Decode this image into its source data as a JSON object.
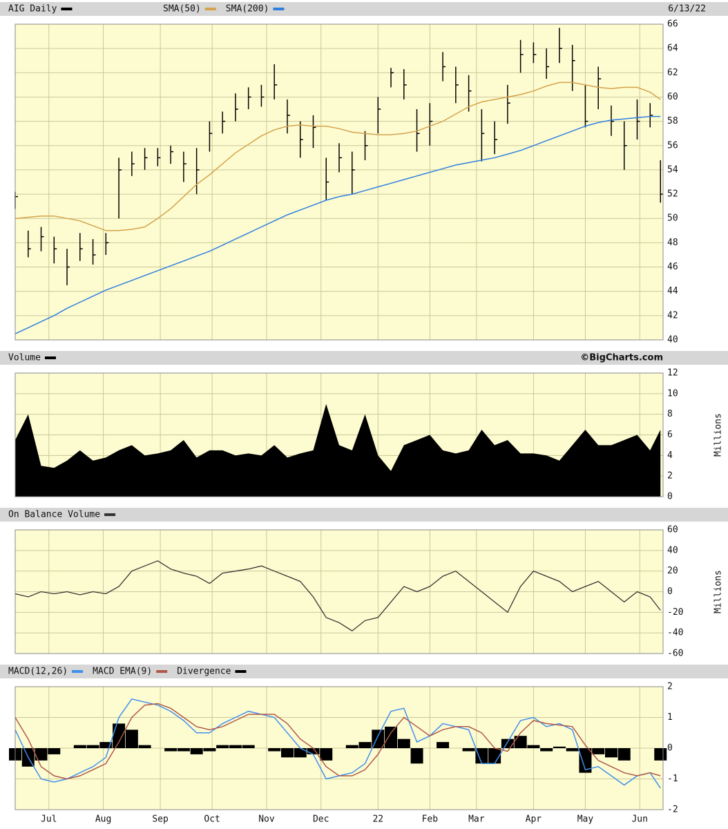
{
  "chart_data": [
    {
      "type": "ohlc",
      "title": "AIG Daily",
      "date": "6/13/22",
      "color": "#000000",
      "x": [
        0,
        5,
        10,
        15,
        20,
        25,
        30,
        35,
        40,
        45,
        50,
        55,
        60,
        65,
        70,
        75,
        80,
        85,
        90,
        95,
        100,
        105,
        110,
        115,
        120,
        125,
        130,
        135,
        140,
        145,
        150,
        155,
        160,
        165,
        170,
        175,
        180,
        185,
        190,
        195,
        200,
        205,
        210,
        215,
        220,
        225,
        230,
        235,
        240,
        245,
        249
      ],
      "high": [
        52.2,
        49,
        49.3,
        48.5,
        47.5,
        48.8,
        48.3,
        48.8,
        55,
        55.5,
        55.8,
        55.8,
        56,
        55.5,
        55.8,
        58,
        58.8,
        60.3,
        60.8,
        61,
        62.7,
        59.8,
        58,
        58.5,
        55,
        56.2,
        55.5,
        57.2,
        60,
        62.4,
        62.3,
        59,
        59.5,
        63.7,
        62.5,
        61.8,
        59,
        58,
        61,
        64.7,
        64.5,
        64,
        65.7,
        64.3,
        61,
        62.5,
        59.3,
        58,
        59.8,
        59.5,
        54.8
      ],
      "low": [
        50.8,
        46.8,
        47.3,
        46.3,
        44.5,
        46.5,
        46.2,
        47,
        50,
        53.5,
        54,
        54.3,
        54.5,
        53,
        52,
        55.5,
        57,
        58,
        59,
        59.2,
        59.8,
        57,
        55,
        55.8,
        51.5,
        53.8,
        52,
        54.8,
        57,
        60.8,
        59.8,
        55.5,
        56,
        61.3,
        59.5,
        58.8,
        54.7,
        55.3,
        57.8,
        62,
        62.8,
        61.5,
        62.8,
        60.5,
        57.5,
        59,
        56.8,
        54,
        56.5,
        57.5,
        51.3
      ],
      "close": [
        51.8,
        47.5,
        48.5,
        47.5,
        46.0,
        47.5,
        47.0,
        48.0,
        54.0,
        54.5,
        55.0,
        55.0,
        55.5,
        54.5,
        54.0,
        57.0,
        58.0,
        59.0,
        60.0,
        60.0,
        61.0,
        58.5,
        56.5,
        57.5,
        53.0,
        55.0,
        54.0,
        56.0,
        59.0,
        62.0,
        61.0,
        57.0,
        58.0,
        62.5,
        61.0,
        60.5,
        57.0,
        56.5,
        59.5,
        63.5,
        63.5,
        62.5,
        64.0,
        63.0,
        58.0,
        61.5,
        58.0,
        56.0,
        58.0,
        58.5,
        52.0
      ],
      "series": [
        {
          "name": "SMA(50)",
          "color": "#d4a24c",
          "values": [
            50.0,
            50.1,
            50.2,
            50.2,
            50.0,
            49.8,
            49.4,
            49.0,
            49.0,
            49.1,
            49.3,
            50.0,
            50.8,
            51.8,
            52.8,
            53.6,
            54.5,
            55.4,
            56.1,
            56.8,
            57.3,
            57.6,
            57.7,
            57.6,
            57.6,
            57.4,
            57.1,
            57.0,
            56.9,
            56.9,
            57.0,
            57.2,
            57.6,
            58.0,
            58.6,
            59.2,
            59.6,
            59.8,
            60.0,
            60.2,
            60.5,
            60.9,
            61.2,
            61.2,
            61.0,
            60.8,
            60.7,
            60.8,
            60.8,
            60.4,
            59.8
          ]
        },
        {
          "name": "SMA(200)",
          "color": "#2f7fe0",
          "values": [
            40.5,
            41.0,
            41.5,
            42.0,
            42.6,
            43.1,
            43.6,
            44.1,
            44.5,
            44.9,
            45.3,
            45.7,
            46.1,
            46.5,
            46.9,
            47.3,
            47.8,
            48.3,
            48.8,
            49.3,
            49.8,
            50.3,
            50.7,
            51.1,
            51.5,
            51.8,
            52.0,
            52.3,
            52.6,
            52.9,
            53.2,
            53.5,
            53.8,
            54.1,
            54.4,
            54.6,
            54.8,
            55.0,
            55.3,
            55.6,
            56.0,
            56.4,
            56.8,
            57.2,
            57.6,
            57.9,
            58.1,
            58.2,
            58.3,
            58.4,
            58.4
          ]
        }
      ],
      "ylim": [
        40,
        66
      ],
      "yticks": [
        40,
        42,
        44,
        46,
        48,
        50,
        52,
        54,
        56,
        58,
        60,
        62,
        64,
        66
      ],
      "grid": true
    },
    {
      "type": "area",
      "title": "Volume",
      "credit": "©BigCharts.com",
      "y_label": "Millions",
      "color": "#000000",
      "values": [
        5.5,
        8.0,
        3.0,
        2.8,
        3.5,
        4.5,
        3.5,
        3.8,
        4.5,
        5.0,
        4.0,
        4.2,
        4.5,
        5.5,
        3.8,
        4.5,
        4.5,
        4.0,
        4.2,
        4.0,
        5.0,
        3.8,
        4.2,
        4.5,
        9.0,
        5.0,
        4.5,
        8.0,
        4.0,
        2.5,
        5.0,
        5.5,
        6.0,
        4.5,
        4.2,
        4.5,
        6.5,
        5.0,
        5.5,
        4.2,
        4.2,
        4.0,
        3.5,
        5.0,
        6.5,
        5.0,
        5.0,
        5.5,
        6.0,
        4.5,
        6.5
      ],
      "ylim": [
        0,
        12
      ],
      "yticks": [
        0,
        2,
        4,
        6,
        8,
        10,
        12
      ],
      "grid": true
    },
    {
      "type": "line",
      "title": "On Balance Volume",
      "y_label": "Millions",
      "color": "#333333",
      "values": [
        -2,
        -5,
        0,
        -2,
        0,
        -3,
        0,
        -2,
        5,
        20,
        25,
        30,
        22,
        18,
        15,
        8,
        18,
        20,
        22,
        25,
        20,
        15,
        10,
        -5,
        -25,
        -30,
        -38,
        -28,
        -25,
        -10,
        5,
        0,
        5,
        15,
        20,
        10,
        0,
        -10,
        -20,
        5,
        20,
        15,
        10,
        0,
        5,
        10,
        0,
        -10,
        0,
        -5,
        -18
      ],
      "ylim": [
        -60,
        60
      ],
      "yticks": [
        -60,
        -40,
        -20,
        0,
        20,
        40,
        60
      ],
      "grid": true
    },
    {
      "type": "macd",
      "series": [
        {
          "name": "MACD(12,26)",
          "color": "#3f8fef",
          "values": [
            0.6,
            -0.3,
            -1.0,
            -1.1,
            -1.0,
            -0.8,
            -0.6,
            -0.3,
            1.0,
            1.6,
            1.5,
            1.4,
            1.2,
            0.9,
            0.5,
            0.5,
            0.8,
            1.0,
            1.2,
            1.1,
            1.0,
            0.5,
            0.0,
            -0.2,
            -1.0,
            -0.9,
            -0.8,
            -0.5,
            0.4,
            1.2,
            1.3,
            0.2,
            0.4,
            0.8,
            0.7,
            0.6,
            -0.5,
            -0.5,
            0.2,
            0.9,
            1.0,
            0.7,
            0.8,
            0.6,
            -0.7,
            -0.6,
            -0.9,
            -1.2,
            -0.9,
            -0.8,
            -1.3
          ]
        },
        {
          "name": "MACD EMA(9)",
          "color": "#b0584a",
          "values": [
            1.0,
            0.3,
            -0.6,
            -0.9,
            -1.0,
            -0.9,
            -0.7,
            -0.5,
            0.2,
            1.0,
            1.4,
            1.45,
            1.3,
            1.0,
            0.7,
            0.6,
            0.7,
            0.9,
            1.1,
            1.1,
            1.1,
            0.8,
            0.3,
            0.0,
            -0.6,
            -0.9,
            -0.9,
            -0.7,
            -0.2,
            0.5,
            1.0,
            0.7,
            0.4,
            0.6,
            0.7,
            0.7,
            0.5,
            0.0,
            -0.1,
            0.5,
            0.9,
            0.8,
            0.75,
            0.7,
            0.1,
            -0.4,
            -0.6,
            -0.8,
            -0.9,
            -0.8,
            -0.9
          ]
        },
        {
          "name": "Divergence",
          "color": "#000000",
          "values": [
            -0.4,
            -0.6,
            -0.4,
            -0.2,
            0.0,
            0.1,
            0.1,
            0.2,
            0.8,
            0.6,
            0.1,
            0.0,
            -0.1,
            -0.1,
            -0.2,
            -0.1,
            0.1,
            0.1,
            0.1,
            0.0,
            -0.1,
            -0.3,
            -0.3,
            -0.2,
            -0.4,
            0.0,
            0.1,
            0.2,
            0.6,
            0.7,
            0.3,
            -0.5,
            0.0,
            0.2,
            0.0,
            -0.1,
            -0.5,
            -0.5,
            0.3,
            0.4,
            0.1,
            -0.1,
            0.05,
            -0.1,
            -0.8,
            -0.2,
            -0.3,
            -0.4,
            0.0,
            0.0,
            -0.4
          ]
        }
      ],
      "ylim": [
        -2,
        2
      ],
      "yticks": [
        -2,
        -1,
        0,
        1,
        2
      ],
      "grid": true,
      "xlim": [
        0,
        250
      ],
      "xticks": [
        {
          "value": 13,
          "label": "Jul"
        },
        {
          "value": 34,
          "label": "Aug"
        },
        {
          "value": 56,
          "label": "Sep"
        },
        {
          "value": 76,
          "label": "Oct"
        },
        {
          "value": 97,
          "label": "Nov"
        },
        {
          "value": 118,
          "label": "Dec"
        },
        {
          "value": 140,
          "label": "22"
        },
        {
          "value": 160,
          "label": "Feb"
        },
        {
          "value": 178,
          "label": "Mar"
        },
        {
          "value": 200,
          "label": "Apr"
        },
        {
          "value": 220,
          "label": "May"
        },
        {
          "value": 241,
          "label": "Jun"
        }
      ]
    }
  ]
}
